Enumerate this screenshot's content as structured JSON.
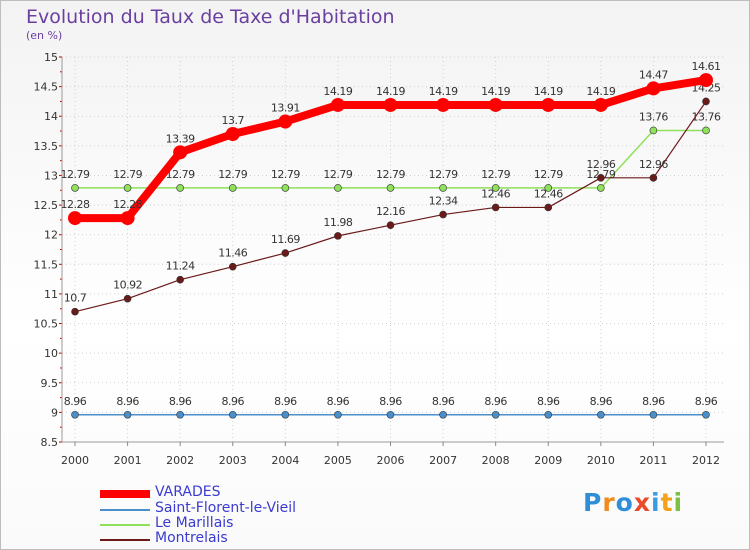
{
  "page": {
    "title": "Evolution du Taux de Taxe d'Habitation",
    "subtitle": "(en %)"
  },
  "chart_data": {
    "type": "line",
    "x": [
      "2000",
      "2001",
      "2002",
      "2003",
      "2004",
      "2005",
      "2006",
      "2007",
      "2008",
      "2009",
      "2010",
      "2011",
      "2012"
    ],
    "ylim": [
      8.5,
      15
    ],
    "yticks": [
      "8.5",
      "9",
      "9.5",
      "10",
      "10.5",
      "11",
      "11.5",
      "12",
      "12.5",
      "13",
      "13.5",
      "14",
      "14.5",
      "15"
    ],
    "grid": true,
    "legend_position": "bottom-left",
    "series": [
      {
        "name": "VARADES",
        "color": "#ff0000",
        "values": [
          12.28,
          12.28,
          13.39,
          13.7,
          13.91,
          14.19,
          14.19,
          14.19,
          14.19,
          14.19,
          14.19,
          14.47,
          14.61
        ],
        "labels": [
          "12.28",
          "12.28",
          "13.39",
          "13.7",
          "13.91",
          "14.19",
          "14.19",
          "14.19",
          "14.19",
          "14.19",
          "14.19",
          "14.47",
          "14.61"
        ]
      },
      {
        "name": "Saint-Florent-le-Vieil",
        "color": "#4a8fc9",
        "values": [
          8.96,
          8.96,
          8.96,
          8.96,
          8.96,
          8.96,
          8.96,
          8.96,
          8.96,
          8.96,
          8.96,
          8.96,
          8.96
        ],
        "labels": [
          "8.96",
          "8.96",
          "8.96",
          "8.96",
          "8.96",
          "8.96",
          "8.96",
          "8.96",
          "8.96",
          "8.96",
          "8.96",
          "8.96",
          "8.96"
        ]
      },
      {
        "name": "Le Marillais",
        "color": "#8fe05a",
        "values": [
          12.79,
          12.79,
          12.79,
          12.79,
          12.79,
          12.79,
          12.79,
          12.79,
          12.79,
          12.79,
          12.79,
          13.76,
          13.76
        ],
        "labels": [
          "12.79",
          "12.79",
          "12.79",
          "12.79",
          "12.79",
          "12.79",
          "12.79",
          "12.79",
          "12.79",
          "12.79",
          "12.79",
          "13.76",
          "13.76"
        ]
      },
      {
        "name": "Montrelais",
        "color": "#6b1a1a",
        "values": [
          10.7,
          10.92,
          11.24,
          11.46,
          11.69,
          11.98,
          12.16,
          12.34,
          12.46,
          12.46,
          12.96,
          12.96,
          14.25
        ],
        "labels": [
          "10.7",
          "10.92",
          "11.24",
          "11.46",
          "11.69",
          "11.98",
          "12.16",
          "12.34",
          "12.46",
          "12.46",
          "12.96",
          "12.96",
          "14.25"
        ]
      }
    ]
  },
  "logo": {
    "letters": [
      "P",
      "r",
      "o",
      "x",
      "i",
      "t",
      "i"
    ],
    "colors": [
      "#2e8fd8",
      "#f28a1e",
      "#2e8fd8",
      "#e94b2a",
      "#3c9be0",
      "#f6a11a",
      "#7ac142"
    ]
  }
}
